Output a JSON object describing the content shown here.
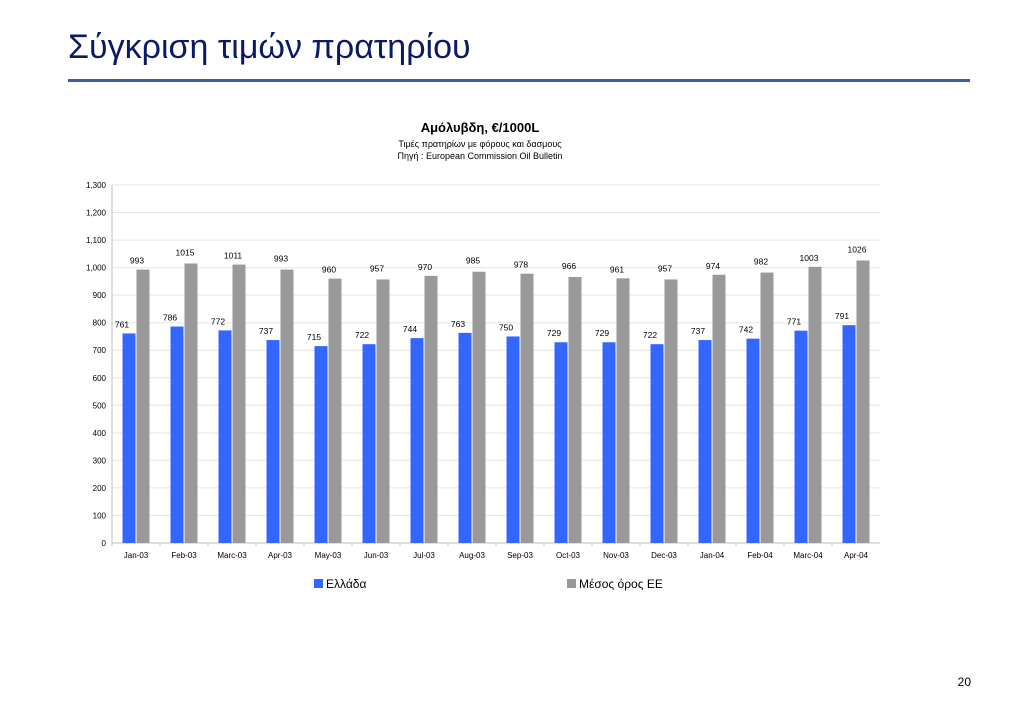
{
  "slide": {
    "title": "Σύγκριση τιμών πρατηρίου",
    "page_number": "20"
  },
  "chart_data": {
    "type": "bar",
    "title": "Αμόλυβδη, €/1000L",
    "subtitle_lines": [
      "Τιμές πρατηρίων με φόρους και δασμους",
      "Πηγή : European Commission Oil Bulletin"
    ],
    "xlabel": "",
    "ylabel": "",
    "categories": [
      "Jan-03",
      "Feb-03",
      "Marc-03",
      "Apr-03",
      "May-03",
      "Jun-03",
      "Jul-03",
      "Aug-03",
      "Sep-03",
      "Oct-03",
      "Nov-03",
      "Dec-03",
      "Jan-04",
      "Feb-04",
      "Marc-04",
      "Apr-04"
    ],
    "ylim": [
      0,
      1300
    ],
    "yticks": [
      0,
      100,
      200,
      300,
      400,
      500,
      600,
      700,
      800,
      900,
      1000,
      1100,
      1200,
      1300
    ],
    "ytick_labels": [
      "0",
      "100",
      "200",
      "300",
      "400",
      "500",
      "600",
      "700",
      "800",
      "900",
      "1,000",
      "1,100",
      "1,200",
      "1,300"
    ],
    "grid": true,
    "legend_position": "bottom",
    "series": [
      {
        "name": "Ελλάδα",
        "color": "#3366ff",
        "values": [
          761,
          786,
          772,
          737,
          715,
          722,
          744,
          763,
          750,
          729,
          729,
          722,
          737,
          742,
          771,
          791
        ]
      },
      {
        "name": "Μέσος όρος ΕΕ",
        "color": "#999999",
        "values": [
          993,
          1015,
          1011,
          993,
          960,
          957,
          970,
          985,
          978,
          966,
          961,
          957,
          974,
          982,
          1003,
          1026
        ]
      }
    ]
  }
}
